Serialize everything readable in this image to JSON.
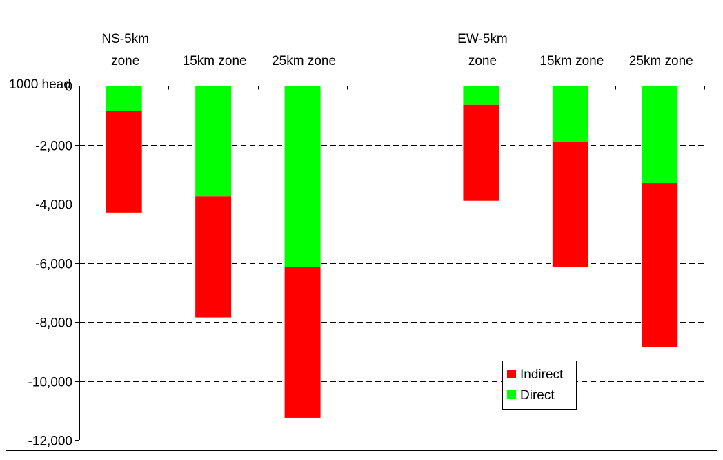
{
  "chart_data": {
    "type": "bar",
    "stacked": true,
    "unit_label": "1000 head",
    "categories": [
      [
        "NS-5km",
        "zone"
      ],
      [
        "15km zone"
      ],
      [
        "25km zone"
      ],
      [
        "EW-5km",
        "zone"
      ],
      [
        "15km zone"
      ],
      [
        "25km zone"
      ]
    ],
    "category_slots": [
      0,
      1,
      2,
      4,
      5,
      6
    ],
    "slot_count": 7,
    "series": [
      {
        "name": "Direct",
        "color": "#00ff00",
        "values": [
          -850,
          -3750,
          -6150,
          -650,
          -1900,
          -3300
        ]
      },
      {
        "name": "Indirect",
        "color": "#ff0000",
        "values": [
          -3450,
          -4100,
          -5100,
          -3250,
          -4250,
          -5550
        ]
      }
    ],
    "ylim": [
      -12000,
      0
    ],
    "yticks": [
      0,
      -2000,
      -4000,
      -6000,
      -8000,
      -10000,
      -12000
    ],
    "ytick_labels": [
      "0",
      "-2,000",
      "-4,000",
      "-6,000",
      "-8,000",
      "-10,000",
      "-12,000"
    ],
    "grid": "horizontal-dashed",
    "legend": {
      "placement": "bottom-right",
      "entries": [
        {
          "label": "Indirect",
          "color": "#ff0000"
        },
        {
          "label": "Direct",
          "color": "#00ff00"
        }
      ]
    }
  }
}
